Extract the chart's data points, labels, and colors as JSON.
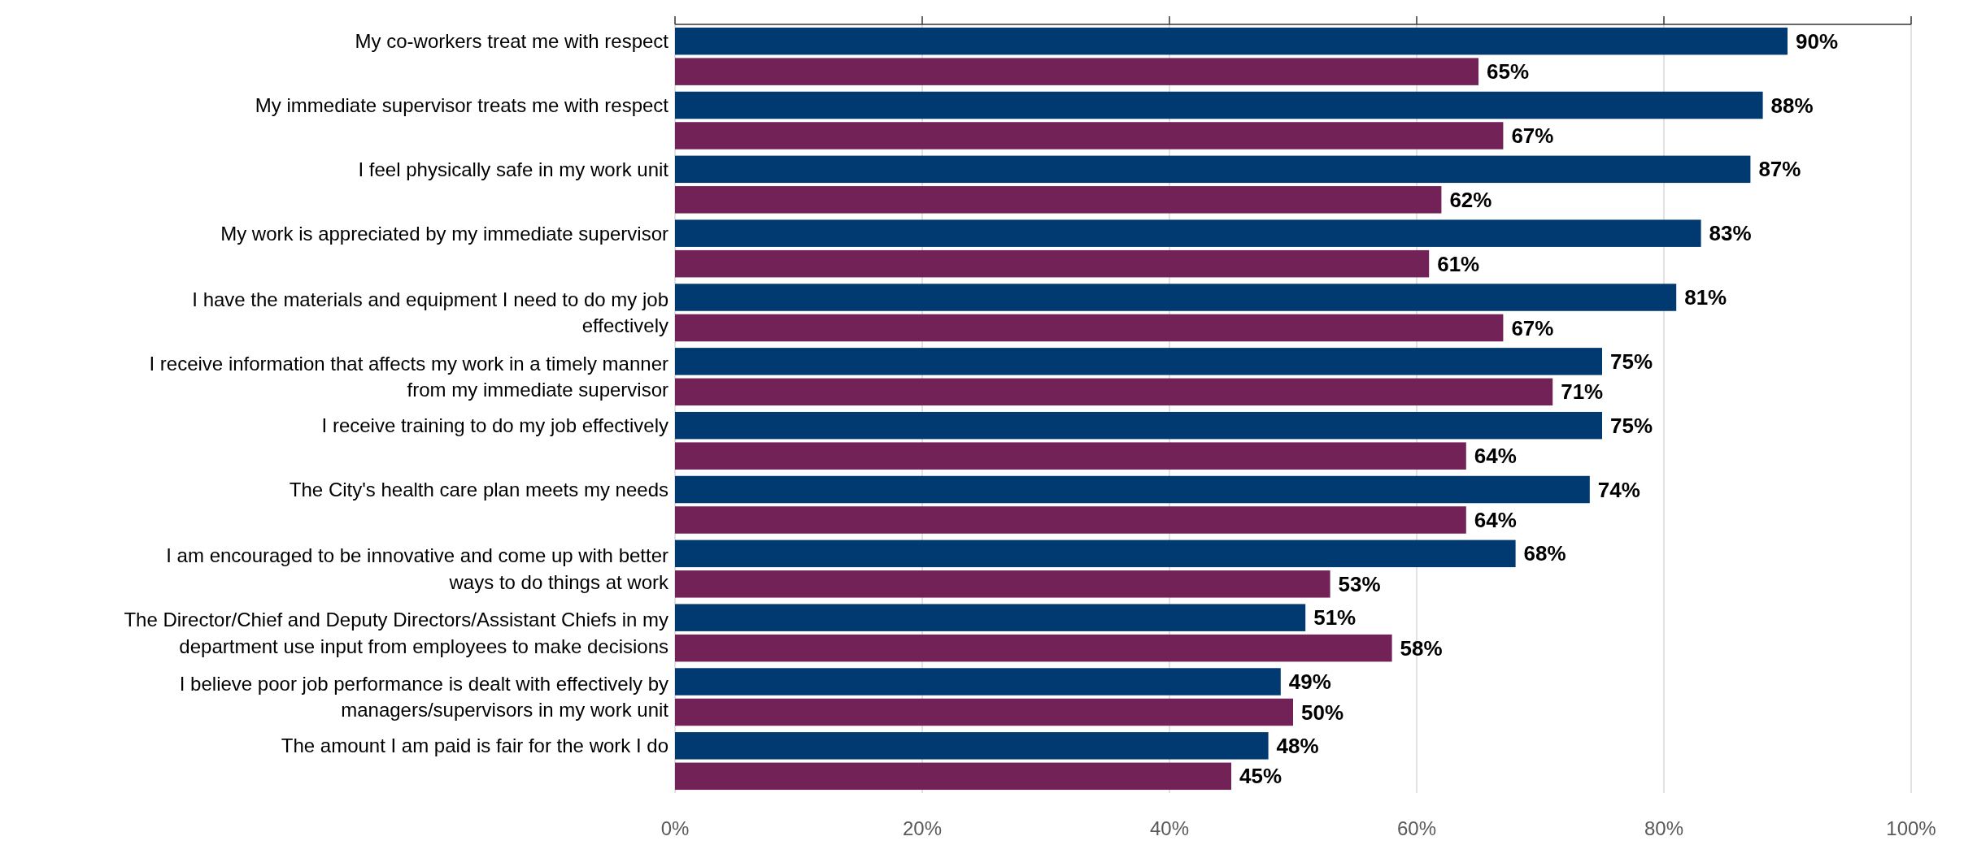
{
  "chart_data": {
    "type": "bar",
    "orientation": "horizontal",
    "categories": [
      "My co-workers treat me with respect",
      "My immediate supervisor treats me with respect",
      "I feel physically safe in my work unit",
      "My work is appreciated by my immediate supervisor",
      "I have the materials and equipment I need to do my job effectively",
      "I receive information that affects my work in a timely manner from my immediate supervisor",
      "I receive training to do my job effectively",
      "The City's health care plan meets my needs",
      "I am encouraged to be innovative and come up with better ways to do things at work",
      "The Director/Chief and Deputy Directors/Assistant Chiefs in my department use input from employees to make decisions",
      "I believe poor job performance is dealt with effectively by managers/supervisors in my work unit",
      "The amount I am paid is fair for the work I do"
    ],
    "series": [
      {
        "color": "#003a70",
        "values": [
          90,
          88,
          87,
          83,
          81,
          75,
          75,
          74,
          68,
          51,
          49,
          48
        ],
        "value_labels": [
          "90%",
          "88%",
          "87%",
          "83%",
          "81%",
          "75%",
          "75%",
          "74%",
          "68%",
          "51%",
          "49%",
          "48%"
        ]
      },
      {
        "color": "#722257",
        "values": [
          65,
          67,
          62,
          61,
          67,
          71,
          64,
          64,
          53,
          58,
          50,
          45
        ],
        "value_labels": [
          "65%",
          "67%",
          "62%",
          "61%",
          "67%",
          "71%",
          "64%",
          "64%",
          "53%",
          "58%",
          "50%",
          "45%"
        ]
      }
    ],
    "xlim": [
      0,
      100
    ],
    "xticks": [
      {
        "value": 0,
        "label": "0%"
      },
      {
        "value": 20,
        "label": "20%"
      },
      {
        "value": 40,
        "label": "40%"
      },
      {
        "value": 60,
        "label": "60%"
      },
      {
        "value": 80,
        "label": "80%"
      },
      {
        "value": 100,
        "label": "100%"
      }
    ],
    "grid": "x"
  }
}
